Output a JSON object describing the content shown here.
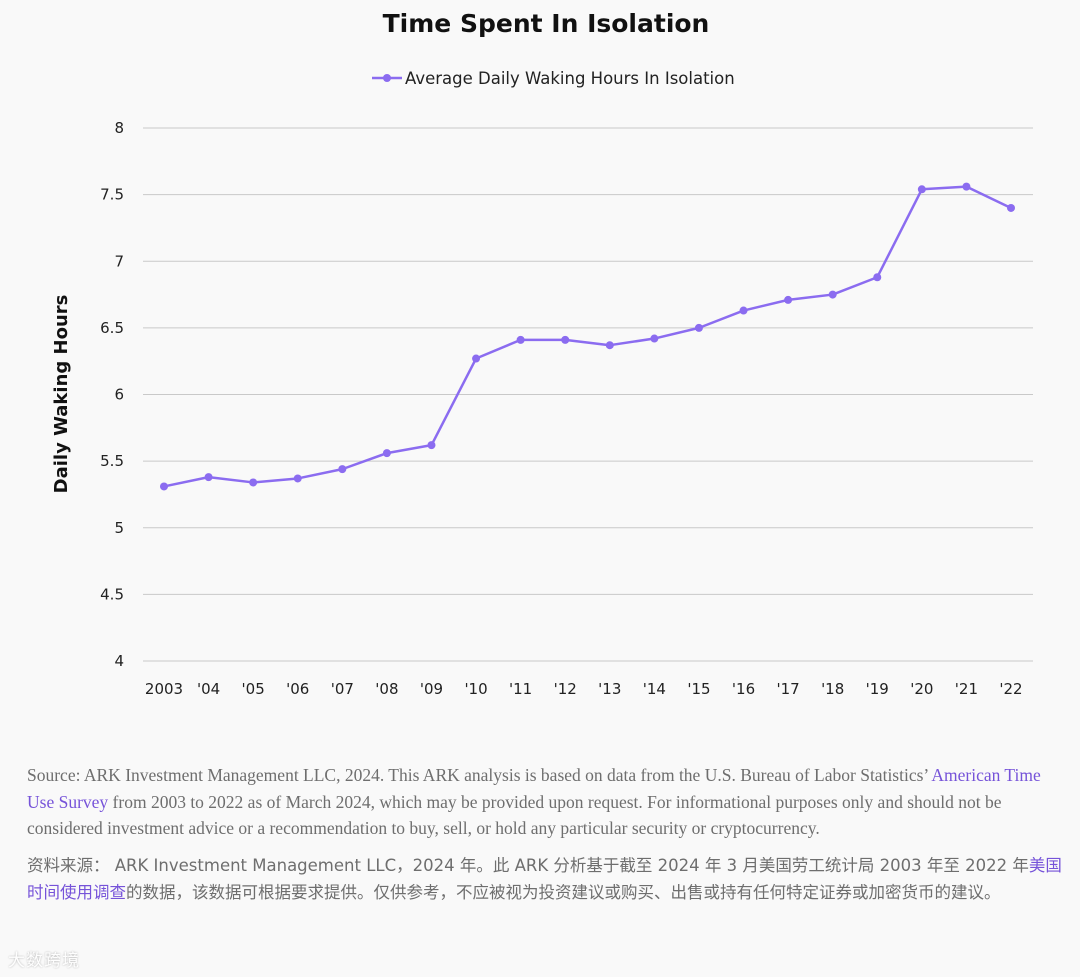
{
  "chart_data": {
    "type": "line",
    "title": "Time Spent In Isolation",
    "ylabel": "Daily Waking Hours",
    "xlabel": "",
    "ylim": [
      4,
      8
    ],
    "yticks": [
      "4",
      "4.5",
      "5",
      "5.5",
      "6",
      "6.5",
      "7",
      "7.5",
      "8"
    ],
    "yticks_values": [
      4,
      4.5,
      5,
      5.5,
      6,
      6.5,
      7,
      7.5,
      8
    ],
    "categories": [
      "2003",
      "'04",
      "'05",
      "'06",
      "'07",
      "'08",
      "'09",
      "'10",
      "'11",
      "'12",
      "'13",
      "'14",
      "'15",
      "'16",
      "'17",
      "'18",
      "'19",
      "'20",
      "'21",
      "'22"
    ],
    "series": [
      {
        "name": "Average Daily Waking Hours In Isolation",
        "color": "#8b6cf0",
        "values": [
          5.31,
          5.38,
          5.34,
          5.37,
          5.44,
          5.56,
          5.62,
          6.27,
          6.41,
          6.41,
          6.37,
          6.42,
          6.5,
          6.63,
          6.71,
          6.75,
          6.88,
          7.54,
          7.56,
          7.4
        ]
      }
    ],
    "grid": true,
    "legend": "top-center"
  },
  "notes": {
    "en_before": "Source: ARK Investment Management LLC, 2024. This ARK analysis is based on data from the U.S. Bureau of Labor Statistics’ ",
    "en_link": "American Time Use Survey",
    "en_after": " from 2003 to 2022 as of March 2024, which may be provided upon request. For informational purposes only and should not be considered investment advice or a recommendation to buy, sell, or hold any particular security or cryptocurrency.",
    "cn_before": "资料来源： ARK Investment Management LLC，2024 年。此 ARK 分析基于截至 2024 年 3 月美国劳工统计局 2003 年至 2022 年",
    "cn_link": "美国时间使用调查",
    "cn_after": "的数据，该数据可根据要求提供。仅供参考，不应被视为投资建议或购买、出售或持有任何特定证券或加密货币的建议。"
  },
  "watermark": "大数跨境"
}
